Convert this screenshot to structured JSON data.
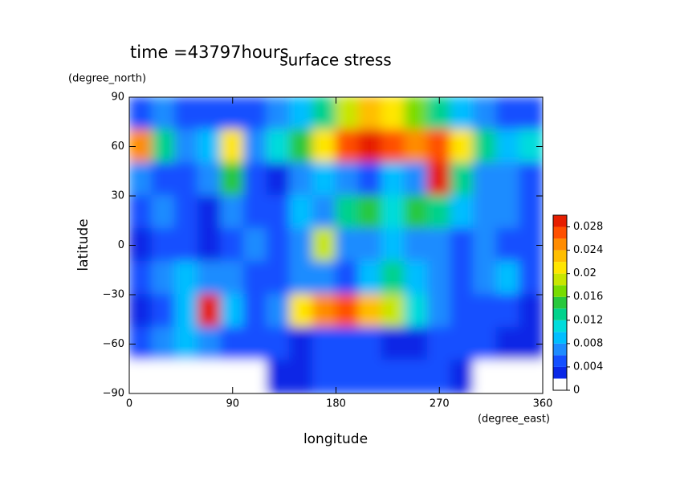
{
  "chart_data": {
    "type": "contour",
    "title": "surface stress",
    "subtitle": "time =43797hours",
    "x_label": "longitude",
    "x_unit": "(degree_east)",
    "y_label": "latitude",
    "y_unit": "(degree_north)",
    "x": [
      10,
      30,
      50,
      70,
      90,
      110,
      130,
      150,
      170,
      190,
      210,
      230,
      250,
      270,
      290,
      310,
      330,
      350
    ],
    "y": [
      80,
      60,
      40,
      20,
      0,
      -20,
      -40,
      -60,
      -80
    ],
    "z": [
      [
        0.005,
        0.006,
        0.004,
        0.004,
        0.004,
        0.005,
        0.006,
        0.008,
        0.012,
        0.018,
        0.022,
        0.02,
        0.016,
        0.012,
        0.008,
        0.006,
        0.005,
        0.004
      ],
      [
        0.024,
        0.012,
        0.006,
        0.008,
        0.02,
        0.006,
        0.01,
        0.014,
        0.02,
        0.026,
        0.03,
        0.026,
        0.024,
        0.026,
        0.02,
        0.012,
        0.008,
        0.01
      ],
      [
        0.006,
        0.004,
        0.004,
        0.006,
        0.014,
        0.004,
        0.002,
        0.006,
        0.008,
        0.006,
        0.004,
        0.008,
        0.006,
        0.028,
        0.012,
        0.006,
        0.006,
        0.004
      ],
      [
        0.004,
        0.006,
        0.004,
        0.002,
        0.006,
        0.004,
        0.004,
        0.008,
        0.006,
        0.012,
        0.014,
        0.01,
        0.014,
        0.012,
        0.008,
        0.006,
        0.006,
        0.004
      ],
      [
        0.002,
        0.004,
        0.004,
        0.002,
        0.004,
        0.006,
        0.004,
        0.006,
        0.018,
        0.006,
        0.006,
        0.008,
        0.006,
        0.006,
        0.004,
        0.006,
        0.004,
        0.004
      ],
      [
        0.004,
        0.006,
        0.008,
        0.006,
        0.006,
        0.004,
        0.004,
        0.006,
        0.006,
        0.004,
        0.008,
        0.012,
        0.008,
        0.006,
        0.004,
        0.006,
        0.008,
        0.004
      ],
      [
        0.002,
        0.004,
        0.008,
        0.028,
        0.008,
        0.004,
        0.006,
        0.02,
        0.024,
        0.026,
        0.022,
        0.018,
        0.01,
        0.006,
        0.004,
        0.004,
        0.004,
        0.002
      ],
      [
        0.004,
        0.006,
        0.008,
        0.006,
        0.004,
        0.004,
        0.004,
        0.002,
        0.004,
        0.004,
        0.004,
        0.002,
        0.002,
        0.004,
        0.004,
        0.004,
        0.002,
        0.002
      ],
      [
        0,
        0,
        0,
        0,
        0,
        0,
        0.002,
        0.002,
        0.004,
        0.004,
        0.004,
        0.004,
        0.004,
        0.004,
        0.002,
        0,
        0,
        0
      ]
    ],
    "levels": [
      0,
      0.002,
      0.004,
      0.006,
      0.008,
      0.01,
      0.012,
      0.014,
      0.016,
      0.018,
      0.02,
      0.022,
      0.024,
      0.026,
      0.028,
      0.03
    ],
    "colors": [
      "#ffffff",
      "#0a28e6",
      "#1450ff",
      "#1e8cff",
      "#00beff",
      "#00dcdc",
      "#00d28c",
      "#28c83c",
      "#78dc00",
      "#c8e600",
      "#ffe600",
      "#ffbe00",
      "#ff8c00",
      "#ff5000",
      "#e61e00"
    ],
    "xlim": [
      0,
      360
    ],
    "ylim": [
      -90,
      90
    ],
    "xticks": [
      0,
      90,
      180,
      270,
      360
    ],
    "yticks": [
      {
        "value": -90,
        "label": "−90"
      },
      {
        "value": -60,
        "label": "−60"
      },
      {
        "value": -30,
        "label": "−30"
      },
      0,
      30,
      60,
      90
    ],
    "clim": [
      0,
      0.03
    ],
    "cticks": [
      0,
      0.004,
      0.008,
      0.012,
      0.016,
      0.02,
      0.024,
      0.028
    ]
  }
}
